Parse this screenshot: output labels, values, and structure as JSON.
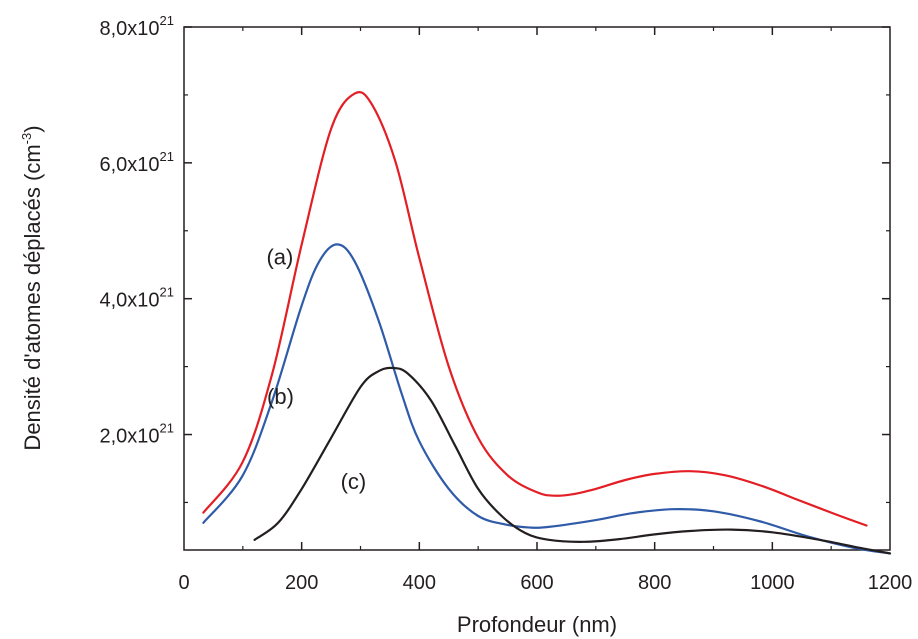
{
  "chart_data": {
    "type": "line",
    "title": "",
    "xlabel": "Profondeur (nm)",
    "ylabel": "Densité d'atomes déplacés (cm",
    "ylabel_sup": "-3",
    "ylabel_close": ")",
    "xlim": [
      0,
      1200
    ],
    "ylim": [
      0.3,
      8.0
    ],
    "y_unit_exponent": "10^21",
    "grid": false,
    "legend": "none",
    "x_ticks": [
      0,
      200,
      400,
      600,
      800,
      1000,
      1200
    ],
    "x_tick_labels": [
      "0",
      "200",
      "400",
      "600",
      "800",
      "1000",
      "1200"
    ],
    "y_ticks": [
      2.0,
      4.0,
      6.0,
      8.0
    ],
    "y_tick_labels": [
      {
        "base": "2,0x10",
        "exp": "21"
      },
      {
        "base": "4,0x10",
        "exp": "21"
      },
      {
        "base": "6,0x10",
        "exp": "21"
      },
      {
        "base": "8,0x10",
        "exp": "21"
      }
    ],
    "series": [
      {
        "name": "(a)",
        "color": "#e31e24",
        "x": [
          33,
          100,
          150,
          200,
          250,
          290,
          320,
          360,
          400,
          450,
          500,
          550,
          600,
          630,
          660,
          700,
          750,
          800,
          860,
          920,
          980,
          1040,
          1100,
          1160
        ],
        "y": [
          0.85,
          1.6,
          2.9,
          4.8,
          6.5,
          7.02,
          6.85,
          6.0,
          4.6,
          3.0,
          1.95,
          1.4,
          1.15,
          1.1,
          1.12,
          1.2,
          1.33,
          1.42,
          1.46,
          1.4,
          1.25,
          1.05,
          0.85,
          0.66
        ]
      },
      {
        "name": "(b)",
        "color": "#2f5ba8",
        "x": [
          33,
          100,
          150,
          200,
          230,
          260,
          290,
          330,
          370,
          400,
          450,
          500,
          550,
          590,
          620,
          700,
          760,
          830,
          900,
          980,
          1060,
          1140,
          1200
        ],
        "y": [
          0.7,
          1.4,
          2.5,
          3.9,
          4.55,
          4.8,
          4.55,
          3.7,
          2.6,
          1.9,
          1.2,
          0.8,
          0.67,
          0.63,
          0.64,
          0.74,
          0.84,
          0.9,
          0.87,
          0.72,
          0.5,
          0.33,
          0.25
        ]
      },
      {
        "name": "(c)",
        "color": "#231f20",
        "x": [
          120,
          160,
          200,
          250,
          300,
          330,
          355,
          380,
          420,
          460,
          500,
          540,
          580,
          620,
          680,
          740,
          800,
          860,
          930,
          1000,
          1080,
          1150,
          1200
        ],
        "y": [
          0.45,
          0.7,
          1.2,
          1.95,
          2.7,
          2.93,
          2.98,
          2.9,
          2.5,
          1.85,
          1.2,
          0.8,
          0.55,
          0.45,
          0.42,
          0.46,
          0.53,
          0.58,
          0.6,
          0.56,
          0.45,
          0.33,
          0.25
        ]
      }
    ],
    "annotations": [
      {
        "text": "(a)",
        "x": 163,
        "y": 4.5
      },
      {
        "text": "(b)",
        "x": 164,
        "y": 2.45
      },
      {
        "text": "(c)",
        "x": 288,
        "y": 1.2
      }
    ]
  }
}
